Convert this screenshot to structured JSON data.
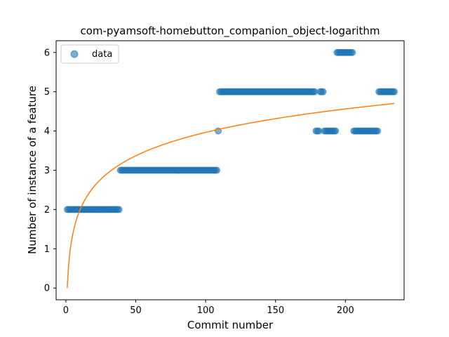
{
  "chart_data": {
    "type": "scatter",
    "title": "com-pyamsoft-homebutton_companion_object-logarithm",
    "xlabel": "Commit number",
    "ylabel": "Number of instance of a feature",
    "xlim": [
      -7,
      242
    ],
    "ylim": [
      -0.3,
      6.3
    ],
    "xticks": [
      0,
      50,
      100,
      150,
      200
    ],
    "yticks": [
      0,
      1,
      2,
      3,
      4,
      5,
      6
    ],
    "legend": {
      "position": "top-left",
      "entries": [
        "data"
      ]
    },
    "colors": {
      "data": "#1f77b4",
      "fit": "#ff7f0e"
    },
    "series": [
      {
        "name": "data",
        "kind": "points",
        "segments": [
          {
            "x_start": 1,
            "x_end": 38,
            "y": 2
          },
          {
            "x_start": 39,
            "x_end": 108,
            "y": 3
          },
          {
            "x_start": 109,
            "x_end": 109,
            "y": 4
          },
          {
            "x_start": 110,
            "x_end": 178,
            "y": 5
          },
          {
            "x_start": 179,
            "x_end": 181,
            "y": 4
          },
          {
            "x_start": 182,
            "x_end": 184,
            "y": 5
          },
          {
            "x_start": 185,
            "x_end": 193,
            "y": 4
          },
          {
            "x_start": 194,
            "x_end": 205,
            "y": 6
          },
          {
            "x_start": 206,
            "x_end": 223,
            "y": 4
          },
          {
            "x_start": 224,
            "x_end": 235,
            "y": 5
          }
        ]
      },
      {
        "kind": "fit-curve",
        "equation": "y = 0.861 * ln(x)",
        "coefficient": 0.861,
        "x_range": [
          1,
          235
        ]
      }
    ]
  }
}
